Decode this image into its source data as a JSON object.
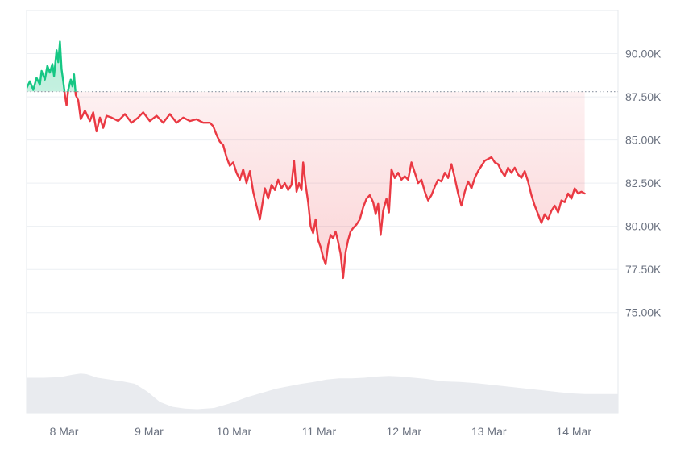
{
  "colors": {
    "up": "#16c784",
    "down": "#ea3943",
    "grid": "#eceff3",
    "frame": "#e6e8ec",
    "baseline": "#9aa1ad",
    "volume": "#e9ebef",
    "tick_text": "#6b7280"
  },
  "chart_data": {
    "type": "area",
    "title": "",
    "xlabel": "",
    "ylabel": "",
    "baseline": 87800,
    "ylim": [
      72700,
      92500
    ],
    "xlim": [
      0,
      7.1
    ],
    "grid": true,
    "y_ticks": [
      {
        "value": 90000,
        "label": "90.00K"
      },
      {
        "value": 87500,
        "label": "87.50K"
      },
      {
        "value": 85000,
        "label": "85.00K"
      },
      {
        "value": 82500,
        "label": "82.50K"
      },
      {
        "value": 80000,
        "label": "80.00K"
      },
      {
        "value": 77500,
        "label": "77.50K"
      },
      {
        "value": 75000,
        "label": "75.00K"
      }
    ],
    "x_ticks": [
      {
        "value": 0.45,
        "label": "8 Mar"
      },
      {
        "value": 1.47,
        "label": "9 Mar"
      },
      {
        "value": 2.49,
        "label": "10 Mar"
      },
      {
        "value": 3.51,
        "label": "11 Mar"
      },
      {
        "value": 4.53,
        "label": "12 Mar"
      },
      {
        "value": 5.55,
        "label": "13 Mar"
      },
      {
        "value": 6.57,
        "label": "14 Mar"
      }
    ],
    "series": [
      {
        "points": [
          [
            0.0,
            88000
          ],
          [
            0.04,
            88400
          ],
          [
            0.08,
            87900
          ],
          [
            0.12,
            88600
          ],
          [
            0.16,
            88200
          ],
          [
            0.18,
            89000
          ],
          [
            0.22,
            88500
          ],
          [
            0.25,
            89300
          ],
          [
            0.28,
            88900
          ],
          [
            0.31,
            89400
          ],
          [
            0.33,
            88700
          ],
          [
            0.36,
            90200
          ],
          [
            0.38,
            89500
          ],
          [
            0.4,
            90700
          ],
          [
            0.42,
            89100
          ],
          [
            0.44,
            88400
          ],
          [
            0.46,
            87600
          ],
          [
            0.48,
            87000
          ],
          [
            0.5,
            87900
          ],
          [
            0.53,
            88500
          ],
          [
            0.55,
            88100
          ],
          [
            0.57,
            88800
          ],
          [
            0.59,
            87600
          ],
          [
            0.62,
            87300
          ],
          [
            0.65,
            86200
          ],
          [
            0.7,
            86700
          ],
          [
            0.76,
            86100
          ],
          [
            0.8,
            86600
          ],
          [
            0.84,
            85500
          ],
          [
            0.88,
            86300
          ],
          [
            0.92,
            85700
          ],
          [
            0.96,
            86400
          ],
          [
            1.02,
            86300
          ],
          [
            1.1,
            86100
          ],
          [
            1.18,
            86500
          ],
          [
            1.26,
            86000
          ],
          [
            1.34,
            86300
          ],
          [
            1.4,
            86600
          ],
          [
            1.48,
            86100
          ],
          [
            1.56,
            86400
          ],
          [
            1.64,
            86000
          ],
          [
            1.72,
            86500
          ],
          [
            1.8,
            86000
          ],
          [
            1.88,
            86300
          ],
          [
            1.96,
            86100
          ],
          [
            2.04,
            86200
          ],
          [
            2.12,
            86000
          ],
          [
            2.2,
            86000
          ],
          [
            2.24,
            85800
          ],
          [
            2.28,
            85300
          ],
          [
            2.32,
            84900
          ],
          [
            2.36,
            84700
          ],
          [
            2.4,
            84000
          ],
          [
            2.44,
            83500
          ],
          [
            2.48,
            83700
          ],
          [
            2.52,
            83100
          ],
          [
            2.56,
            82700
          ],
          [
            2.6,
            83300
          ],
          [
            2.64,
            82500
          ],
          [
            2.68,
            83200
          ],
          [
            2.72,
            82000
          ],
          [
            2.76,
            81200
          ],
          [
            2.8,
            80400
          ],
          [
            2.83,
            81300
          ],
          [
            2.86,
            82200
          ],
          [
            2.9,
            81600
          ],
          [
            2.94,
            82400
          ],
          [
            2.98,
            82100
          ],
          [
            3.02,
            82700
          ],
          [
            3.06,
            82200
          ],
          [
            3.1,
            82500
          ],
          [
            3.14,
            82100
          ],
          [
            3.18,
            82400
          ],
          [
            3.21,
            83800
          ],
          [
            3.24,
            82000
          ],
          [
            3.27,
            82500
          ],
          [
            3.3,
            82100
          ],
          [
            3.32,
            83700
          ],
          [
            3.35,
            82400
          ],
          [
            3.38,
            81400
          ],
          [
            3.41,
            80000
          ],
          [
            3.44,
            79600
          ],
          [
            3.47,
            80400
          ],
          [
            3.5,
            79200
          ],
          [
            3.53,
            78800
          ],
          [
            3.56,
            78200
          ],
          [
            3.59,
            77800
          ],
          [
            3.62,
            78900
          ],
          [
            3.65,
            79500
          ],
          [
            3.68,
            79300
          ],
          [
            3.71,
            79700
          ],
          [
            3.74,
            79100
          ],
          [
            3.77,
            78400
          ],
          [
            3.8,
            77000
          ],
          [
            3.83,
            78500
          ],
          [
            3.86,
            79200
          ],
          [
            3.89,
            79700
          ],
          [
            3.92,
            79900
          ],
          [
            3.96,
            80100
          ],
          [
            4.0,
            80400
          ],
          [
            4.04,
            81100
          ],
          [
            4.08,
            81600
          ],
          [
            4.12,
            81800
          ],
          [
            4.16,
            81400
          ],
          [
            4.19,
            80700
          ],
          [
            4.22,
            81300
          ],
          [
            4.25,
            79500
          ],
          [
            4.28,
            80900
          ],
          [
            4.32,
            81600
          ],
          [
            4.35,
            80800
          ],
          [
            4.38,
            83300
          ],
          [
            4.42,
            82800
          ],
          [
            4.46,
            83100
          ],
          [
            4.5,
            82700
          ],
          [
            4.54,
            82900
          ],
          [
            4.58,
            82700
          ],
          [
            4.62,
            83700
          ],
          [
            4.66,
            83100
          ],
          [
            4.7,
            82500
          ],
          [
            4.74,
            82700
          ],
          [
            4.78,
            82000
          ],
          [
            4.82,
            81500
          ],
          [
            4.86,
            81800
          ],
          [
            4.9,
            82300
          ],
          [
            4.94,
            82700
          ],
          [
            4.98,
            82600
          ],
          [
            5.02,
            83100
          ],
          [
            5.06,
            82800
          ],
          [
            5.1,
            83600
          ],
          [
            5.14,
            82800
          ],
          [
            5.18,
            81900
          ],
          [
            5.22,
            81200
          ],
          [
            5.26,
            82000
          ],
          [
            5.3,
            82600
          ],
          [
            5.34,
            82200
          ],
          [
            5.38,
            82800
          ],
          [
            5.42,
            83200
          ],
          [
            5.46,
            83500
          ],
          [
            5.5,
            83800
          ],
          [
            5.54,
            83900
          ],
          [
            5.58,
            84000
          ],
          [
            5.62,
            83700
          ],
          [
            5.66,
            83600
          ],
          [
            5.7,
            83200
          ],
          [
            5.74,
            82900
          ],
          [
            5.78,
            83400
          ],
          [
            5.82,
            83100
          ],
          [
            5.86,
            83400
          ],
          [
            5.9,
            83000
          ],
          [
            5.94,
            82800
          ],
          [
            5.98,
            83200
          ],
          [
            6.02,
            82600
          ],
          [
            6.06,
            81800
          ],
          [
            6.1,
            81200
          ],
          [
            6.14,
            80700
          ],
          [
            6.18,
            80200
          ],
          [
            6.22,
            80700
          ],
          [
            6.26,
            80400
          ],
          [
            6.3,
            80900
          ],
          [
            6.34,
            81200
          ],
          [
            6.38,
            80800
          ],
          [
            6.42,
            81500
          ],
          [
            6.46,
            81400
          ],
          [
            6.5,
            81900
          ],
          [
            6.54,
            81600
          ],
          [
            6.58,
            82200
          ],
          [
            6.62,
            81900
          ],
          [
            6.66,
            82000
          ],
          [
            6.7,
            81900
          ]
        ]
      }
    ],
    "volume": {
      "ylim": [
        0,
        1
      ],
      "points": [
        [
          0.0,
          0.58
        ],
        [
          0.2,
          0.58
        ],
        [
          0.4,
          0.59
        ],
        [
          0.55,
          0.63
        ],
        [
          0.65,
          0.65
        ],
        [
          0.72,
          0.64
        ],
        [
          0.85,
          0.58
        ],
        [
          1.0,
          0.55
        ],
        [
          1.15,
          0.52
        ],
        [
          1.3,
          0.48
        ],
        [
          1.45,
          0.35
        ],
        [
          1.6,
          0.18
        ],
        [
          1.75,
          0.1
        ],
        [
          1.9,
          0.07
        ],
        [
          2.05,
          0.06
        ],
        [
          2.25,
          0.08
        ],
        [
          2.45,
          0.16
        ],
        [
          2.65,
          0.26
        ],
        [
          2.85,
          0.34
        ],
        [
          3.0,
          0.4
        ],
        [
          3.15,
          0.44
        ],
        [
          3.3,
          0.48
        ],
        [
          3.45,
          0.51
        ],
        [
          3.6,
          0.55
        ],
        [
          3.75,
          0.57
        ],
        [
          3.9,
          0.57
        ],
        [
          4.05,
          0.58
        ],
        [
          4.2,
          0.6
        ],
        [
          4.35,
          0.61
        ],
        [
          4.5,
          0.6
        ],
        [
          4.65,
          0.58
        ],
        [
          4.8,
          0.56
        ],
        [
          5.0,
          0.52
        ],
        [
          5.2,
          0.51
        ],
        [
          5.4,
          0.49
        ],
        [
          5.6,
          0.46
        ],
        [
          5.8,
          0.43
        ],
        [
          6.0,
          0.4
        ],
        [
          6.2,
          0.37
        ],
        [
          6.4,
          0.34
        ],
        [
          6.55,
          0.32
        ],
        [
          6.7,
          0.31
        ]
      ]
    }
  }
}
